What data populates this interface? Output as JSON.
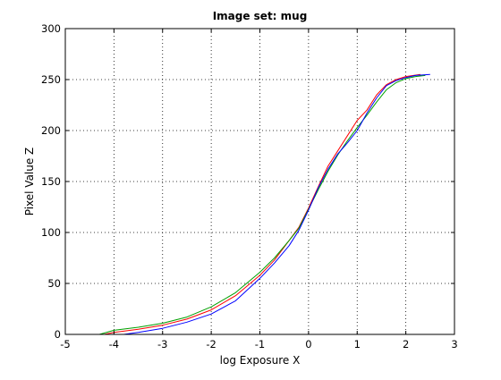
{
  "chart_data": {
    "type": "line",
    "title": "Image set: mug",
    "xlabel": "log Exposure X",
    "ylabel": "Pixel Value Z",
    "xlim": [
      -5,
      3
    ],
    "ylim": [
      0,
      300
    ],
    "x_ticks": [
      "-5",
      "-4",
      "-3",
      "-2",
      "-1",
      "0",
      "1",
      "2",
      "3"
    ],
    "y_ticks": [
      "0",
      "50",
      "100",
      "150",
      "200",
      "250",
      "300"
    ],
    "grid": true,
    "series": [
      {
        "color": "#ff0000",
        "points": [
          [
            -4.2,
            0
          ],
          [
            -4.0,
            2
          ],
          [
            -3.5,
            5
          ],
          [
            -3.0,
            9
          ],
          [
            -2.5,
            15
          ],
          [
            -2.0,
            24
          ],
          [
            -1.5,
            38
          ],
          [
            -1.0,
            58
          ],
          [
            -0.7,
            73
          ],
          [
            -0.4,
            92
          ],
          [
            -0.2,
            105
          ],
          [
            0.0,
            124
          ],
          [
            0.2,
            145
          ],
          [
            0.4,
            165
          ],
          [
            0.6,
            180
          ],
          [
            0.8,
            195
          ],
          [
            1.0,
            210
          ],
          [
            1.2,
            220
          ],
          [
            1.4,
            235
          ],
          [
            1.6,
            245
          ],
          [
            1.8,
            250
          ],
          [
            2.0,
            253
          ],
          [
            2.3,
            255
          ]
        ]
      },
      {
        "color": "#00a000",
        "points": [
          [
            -4.3,
            0
          ],
          [
            -4.0,
            4
          ],
          [
            -3.5,
            7
          ],
          [
            -3.0,
            11
          ],
          [
            -2.5,
            17
          ],
          [
            -2.0,
            27
          ],
          [
            -1.5,
            41
          ],
          [
            -1.0,
            61
          ],
          [
            -0.7,
            75
          ],
          [
            -0.4,
            92
          ],
          [
            -0.2,
            104
          ],
          [
            0.0,
            123
          ],
          [
            0.2,
            142
          ],
          [
            0.4,
            160
          ],
          [
            0.6,
            176
          ],
          [
            0.8,
            190
          ],
          [
            1.0,
            203
          ],
          [
            1.2,
            215
          ],
          [
            1.4,
            228
          ],
          [
            1.6,
            240
          ],
          [
            1.8,
            247
          ],
          [
            2.0,
            251
          ],
          [
            2.2,
            253
          ],
          [
            2.4,
            254
          ]
        ]
      },
      {
        "color": "#0000ff",
        "points": [
          [
            -3.8,
            0
          ],
          [
            -3.5,
            2
          ],
          [
            -3.0,
            6
          ],
          [
            -2.5,
            12
          ],
          [
            -2.0,
            20
          ],
          [
            -1.5,
            33
          ],
          [
            -1.0,
            55
          ],
          [
            -0.7,
            70
          ],
          [
            -0.4,
            87
          ],
          [
            -0.2,
            102
          ],
          [
            0.0,
            122
          ],
          [
            0.2,
            144
          ],
          [
            0.4,
            162
          ],
          [
            0.6,
            177
          ],
          [
            0.8,
            188
          ],
          [
            1.0,
            200
          ],
          [
            1.2,
            217
          ],
          [
            1.4,
            232
          ],
          [
            1.6,
            244
          ],
          [
            1.8,
            249
          ],
          [
            2.0,
            252
          ],
          [
            2.2,
            254
          ],
          [
            2.5,
            255
          ]
        ]
      }
    ]
  }
}
